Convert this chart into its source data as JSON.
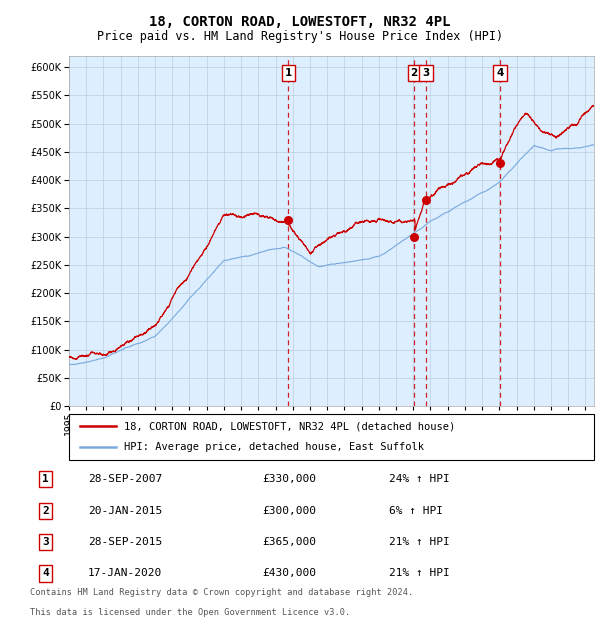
{
  "title": "18, CORTON ROAD, LOWESTOFT, NR32 4PL",
  "subtitle": "Price paid vs. HM Land Registry's House Price Index (HPI)",
  "legend_line1": "18, CORTON ROAD, LOWESTOFT, NR32 4PL (detached house)",
  "legend_line2": "HPI: Average price, detached house, East Suffolk",
  "footer_line1": "Contains HM Land Registry data © Crown copyright and database right 2024.",
  "footer_line2": "This data is licensed under the Open Government Licence v3.0.",
  "transactions": [
    {
      "num": "1",
      "date": "28-SEP-2007",
      "price": 330000,
      "pct": "24%",
      "dir": "↑"
    },
    {
      "num": "2",
      "date": "20-JAN-2015",
      "price": 300000,
      "pct": "6%",
      "dir": "↑"
    },
    {
      "num": "3",
      "date": "28-SEP-2015",
      "price": 365000,
      "pct": "21%",
      "dir": "↑"
    },
    {
      "num": "4",
      "date": "17-JAN-2020",
      "price": 430000,
      "pct": "21%",
      "dir": "↑"
    }
  ],
  "transaction_dates_decimal": [
    2007.74,
    2015.05,
    2015.74,
    2020.04
  ],
  "transaction_prices": [
    330000,
    300000,
    365000,
    430000
  ],
  "ylim": [
    0,
    620000
  ],
  "xlim_start": 1995.0,
  "xlim_end": 2025.5,
  "hpi_color": "#7aaadd",
  "price_color": "#cc0000",
  "bg_plot": "#ddeeff",
  "bg_fig": "#ffffff",
  "grid_color": "#bbccdd",
  "vline_color": "#cc0000",
  "marker_color": "#cc0000",
  "box_color": "#cc0000",
  "title_fontsize": 10,
  "subtitle_fontsize": 8.5,
  "tick_fontsize": 7,
  "label_fontsize": 7.5,
  "yticks": [
    0,
    50000,
    100000,
    150000,
    200000,
    250000,
    300000,
    350000,
    400000,
    450000,
    500000,
    550000,
    600000
  ]
}
